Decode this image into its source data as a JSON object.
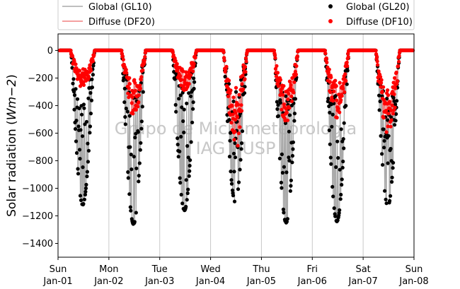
{
  "chart_data": {
    "type": "scatter",
    "ylabel": "Solar radiation ($Wm−2$)",
    "ylabel_parts": {
      "pre": "Solar radiation (",
      "math": "Wm−2",
      "post": ")"
    },
    "ylim": [
      -1500,
      120
    ],
    "yticks": [
      0,
      -200,
      -400,
      -600,
      -800,
      -1000,
      -1200,
      -1400
    ],
    "ytick_labels": [
      "0",
      "−200",
      "−400",
      "−600",
      "−800",
      "−1000",
      "−1200",
      "−1400"
    ],
    "xlim": [
      0,
      7
    ],
    "xticks": [
      0,
      1,
      2,
      3,
      4,
      5,
      6,
      7
    ],
    "xtick_labels": [
      [
        "Sun",
        "Jan-01"
      ],
      [
        "Mon",
        "Jan-02"
      ],
      [
        "Tue",
        "Jan-03"
      ],
      [
        "Wed",
        "Jan-04"
      ],
      [
        "Thu",
        "Jan-05"
      ],
      [
        "Fri",
        "Jan-06"
      ],
      [
        "Sat",
        "Jan-07"
      ],
      [
        "Sun",
        "Jan-08"
      ]
    ],
    "grid": "x",
    "legend": {
      "placement": "top",
      "entries": [
        {
          "label": "Global (GL10)",
          "kind": "line",
          "color": "#aaaaaa"
        },
        {
          "label": "Global (GL20)",
          "kind": "marker",
          "color": "#000000"
        },
        {
          "label": "Diffuse (DF20)",
          "kind": "line",
          "color": "#f08080"
        },
        {
          "label": "Diffuse (DF10)",
          "kind": "marker",
          "color": "#ff0000"
        }
      ]
    },
    "watermark": [
      "Grupo de Micrometeorologia",
      "IAG - USP"
    ],
    "days": [
      {
        "start": 0.25,
        "end": 0.72,
        "global_min": -1120,
        "diffuse_min": -280
      },
      {
        "start": 1.25,
        "end": 1.72,
        "global_min": -1260,
        "diffuse_min": -470
      },
      {
        "start": 2.25,
        "end": 2.72,
        "global_min": -1160,
        "diffuse_min": -300
      },
      {
        "start": 3.25,
        "end": 3.72,
        "global_min": -1100,
        "diffuse_min": -740
      },
      {
        "start": 4.25,
        "end": 4.72,
        "global_min": -1250,
        "diffuse_min": -540
      },
      {
        "start": 5.25,
        "end": 5.72,
        "global_min": -1240,
        "diffuse_min": -490
      },
      {
        "start": 6.25,
        "end": 6.72,
        "global_min": -1130,
        "diffuse_min": -640
      }
    ],
    "series": [
      {
        "name": "Global (GL10)",
        "style": "line",
        "color": "#aaaaaa"
      },
      {
        "name": "Global (GL20)",
        "style": "marker",
        "color": "#000000"
      },
      {
        "name": "Diffuse (DF20)",
        "style": "line",
        "color": "#f08080"
      },
      {
        "name": "Diffuse (DF10)",
        "style": "marker",
        "color": "#ff0000"
      }
    ]
  }
}
